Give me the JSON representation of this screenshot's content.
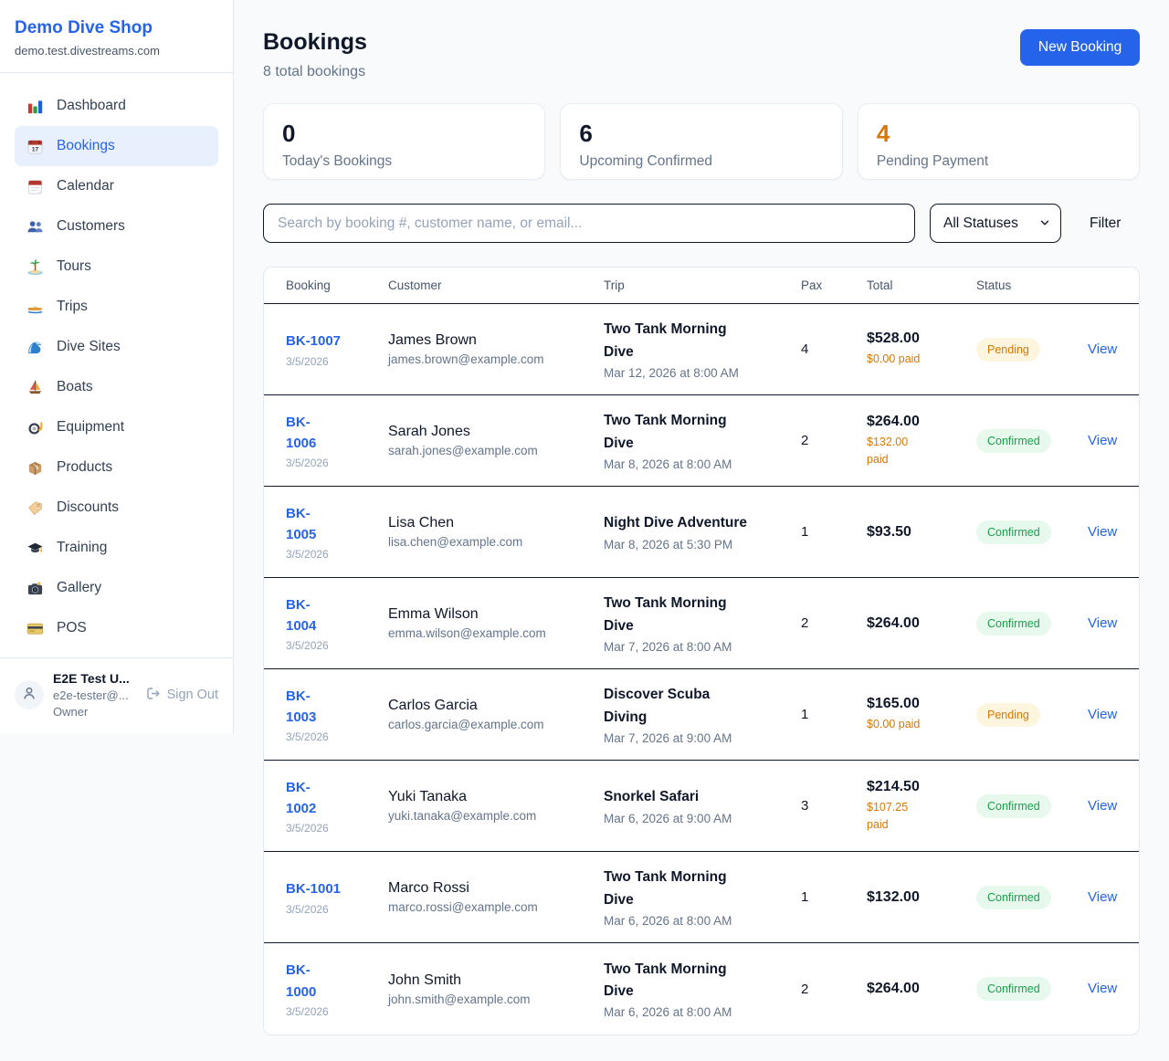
{
  "colors": {
    "accent_blue": "#2563eb",
    "pending_orange": "#d97706",
    "confirmed_green": "#16a34a",
    "page_background": "#f8fafc"
  },
  "sidebar": {
    "brand": {
      "title": "Demo Dive Shop",
      "domain": "demo.test.divestreams.com"
    },
    "items": [
      {
        "label": "Dashboard",
        "icon": "bar-chart-icon",
        "active": false
      },
      {
        "label": "Bookings",
        "icon": "calendar-17-icon",
        "active": true
      },
      {
        "label": "Calendar",
        "icon": "calendar-icon",
        "active": false
      },
      {
        "label": "Customers",
        "icon": "people-icon",
        "active": false
      },
      {
        "label": "Tours",
        "icon": "island-icon",
        "active": false
      },
      {
        "label": "Trips",
        "icon": "speedboat-icon",
        "active": false
      },
      {
        "label": "Dive Sites",
        "icon": "wave-icon",
        "active": false
      },
      {
        "label": "Boats",
        "icon": "sailboat-icon",
        "active": false
      },
      {
        "label": "Equipment",
        "icon": "dive-mask-icon",
        "active": false
      },
      {
        "label": "Products",
        "icon": "package-icon",
        "active": false
      },
      {
        "label": "Discounts",
        "icon": "tag-icon",
        "active": false
      },
      {
        "label": "Training",
        "icon": "grad-cap-icon",
        "active": false
      },
      {
        "label": "Gallery",
        "icon": "camera-icon",
        "active": false
      },
      {
        "label": "POS",
        "icon": "credit-card-icon",
        "active": false
      }
    ],
    "user": {
      "name": "E2E Test U...",
      "email": "e2e-tester@...",
      "role": "Owner",
      "signout_label": "Sign Out"
    }
  },
  "header": {
    "title": "Bookings",
    "subtitle": "8 total bookings",
    "new_booking_label": "New Booking"
  },
  "stats": [
    {
      "value": "0",
      "label": "Today's Bookings",
      "accent": false
    },
    {
      "value": "6",
      "label": "Upcoming Confirmed",
      "accent": false
    },
    {
      "value": "4",
      "label": "Pending Payment",
      "accent": true
    }
  ],
  "filters": {
    "search_placeholder": "Search by booking #, customer name, or email...",
    "status_value": "All Statuses",
    "filter_label": "Filter"
  },
  "table": {
    "columns": [
      "Booking",
      "Customer",
      "Trip",
      "Pax",
      "Total",
      "Status",
      ""
    ],
    "view_label": "View",
    "rows": [
      {
        "id": "BK-1007",
        "id_two_lines": false,
        "date": "3/5/2026",
        "customer": "James Brown",
        "email": "james.brown@example.com",
        "trip": "Two Tank Morning Dive",
        "trip_two_lines": true,
        "when": "Mar 12, 2026 at 8:00 AM",
        "pax": "4",
        "total": "$528.00",
        "paid": "$0.00 paid",
        "paid_two_lines": false,
        "status": "Pending",
        "status_type": "pending"
      },
      {
        "id": "BK-1006",
        "id_two_lines": true,
        "date": "3/5/2026",
        "customer": "Sarah Jones",
        "email": "sarah.jones@example.com",
        "trip": "Two Tank Morning Dive",
        "trip_two_lines": true,
        "when": "Mar 8, 2026 at 8:00 AM",
        "pax": "2",
        "total": "$264.00",
        "paid": "$132.00 paid",
        "paid_two_lines": true,
        "status": "Confirmed",
        "status_type": "confirmed"
      },
      {
        "id": "BK-1005",
        "id_two_lines": true,
        "date": "3/5/2026",
        "customer": "Lisa Chen",
        "email": "lisa.chen@example.com",
        "trip": "Night Dive Adventure",
        "trip_two_lines": false,
        "when": "Mar 8, 2026 at 5:30 PM",
        "pax": "1",
        "total": "$93.50",
        "paid": "",
        "paid_two_lines": false,
        "status": "Confirmed",
        "status_type": "confirmed"
      },
      {
        "id": "BK-1004",
        "id_two_lines": true,
        "date": "3/5/2026",
        "customer": "Emma Wilson",
        "email": "emma.wilson@example.com",
        "trip": "Two Tank Morning Dive",
        "trip_two_lines": true,
        "when": "Mar 7, 2026 at 8:00 AM",
        "pax": "2",
        "total": "$264.00",
        "paid": "",
        "paid_two_lines": false,
        "status": "Confirmed",
        "status_type": "confirmed"
      },
      {
        "id": "BK-1003",
        "id_two_lines": true,
        "date": "3/5/2026",
        "customer": "Carlos Garcia",
        "email": "carlos.garcia@example.com",
        "trip": "Discover Scuba Diving",
        "trip_two_lines": true,
        "when": "Mar 7, 2026 at 9:00 AM",
        "pax": "1",
        "total": "$165.00",
        "paid": "$0.00 paid",
        "paid_two_lines": false,
        "status": "Pending",
        "status_type": "pending"
      },
      {
        "id": "BK-1002",
        "id_two_lines": true,
        "date": "3/5/2026",
        "customer": "Yuki Tanaka",
        "email": "yuki.tanaka@example.com",
        "trip": "Snorkel Safari",
        "trip_two_lines": false,
        "when": "Mar 6, 2026 at 9:00 AM",
        "pax": "3",
        "total": "$214.50",
        "paid": "$107.25 paid",
        "paid_two_lines": false,
        "status": "Confirmed",
        "status_type": "confirmed"
      },
      {
        "id": "BK-1001",
        "id_two_lines": false,
        "date": "3/5/2026",
        "customer": "Marco Rossi",
        "email": "marco.rossi@example.com",
        "trip": "Two Tank Morning Dive",
        "trip_two_lines": true,
        "when": "Mar 6, 2026 at 8:00 AM",
        "pax": "1",
        "total": "$132.00",
        "paid": "",
        "paid_two_lines": false,
        "status": "Confirmed",
        "status_type": "confirmed"
      },
      {
        "id": "BK-1000",
        "id_two_lines": true,
        "date": "3/5/2026",
        "customer": "John Smith",
        "email": "john.smith@example.com",
        "trip": "Two Tank Morning Dive",
        "trip_two_lines": true,
        "when": "Mar 6, 2026 at 8:00 AM",
        "pax": "2",
        "total": "$264.00",
        "paid": "",
        "paid_two_lines": false,
        "status": "Confirmed",
        "status_type": "confirmed"
      }
    ]
  }
}
